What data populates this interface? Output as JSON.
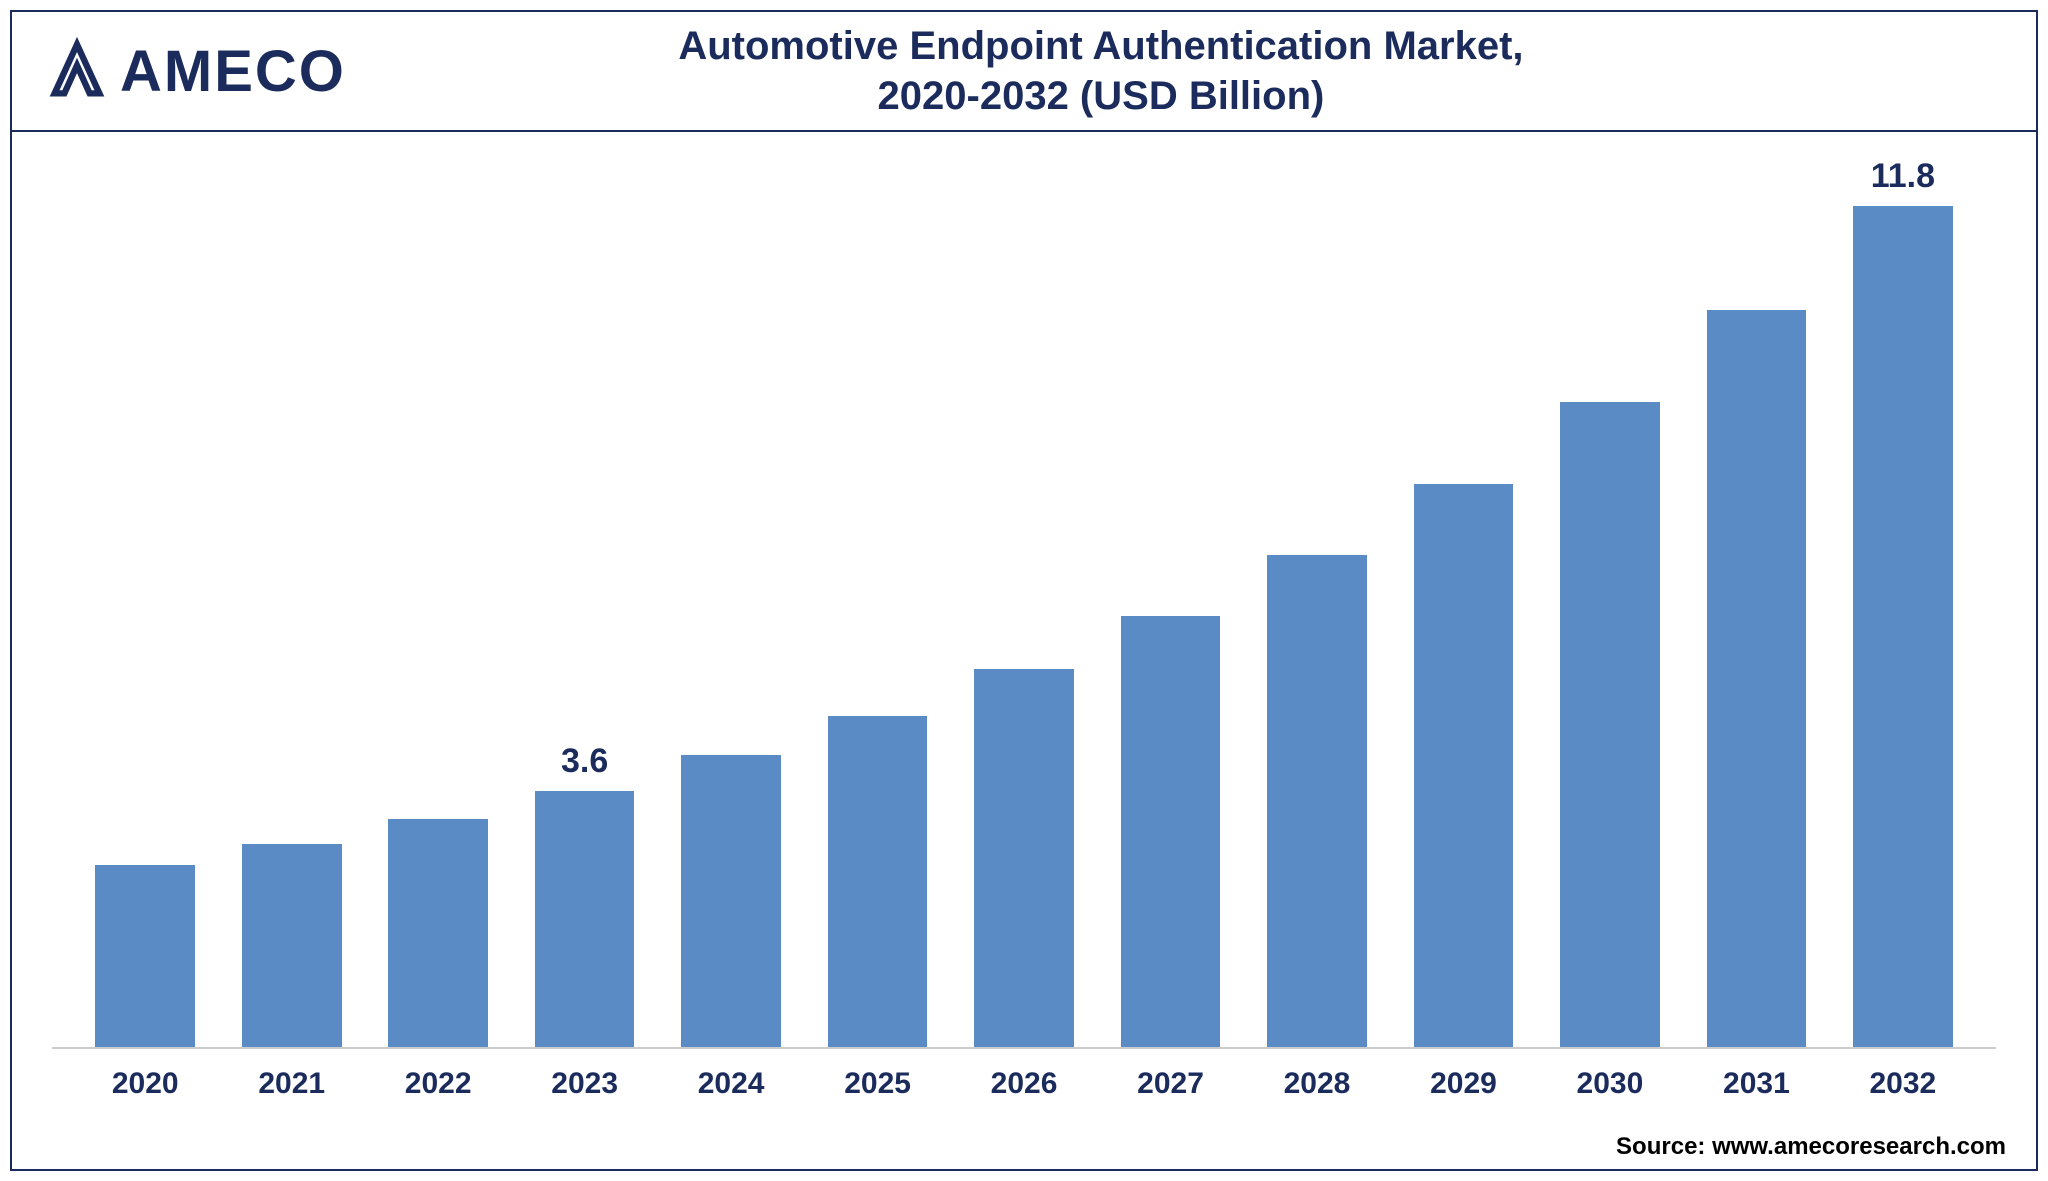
{
  "logo": {
    "text": "AMECO",
    "color": "#1a2b5c"
  },
  "title": {
    "line1": "Automotive Endpoint Authentication Market,",
    "line2": "2020-2032 (USD Billion)",
    "color": "#1a2b5c",
    "fontsize": 40,
    "fontweight": 700
  },
  "chart": {
    "type": "bar",
    "categories": [
      "2020",
      "2021",
      "2022",
      "2023",
      "2024",
      "2025",
      "2026",
      "2027",
      "2028",
      "2029",
      "2030",
      "2031",
      "2032"
    ],
    "values": [
      2.55,
      2.85,
      3.2,
      3.6,
      4.1,
      4.65,
      5.3,
      6.05,
      6.9,
      7.9,
      9.05,
      10.35,
      11.8
    ],
    "value_labels": {
      "3": "3.6",
      "12": "11.8"
    },
    "bar_color": "#5b8bc5",
    "bar_width_ratio": 0.68,
    "ymax": 12.0,
    "ymin": 0,
    "background_color": "#ffffff",
    "axis_line_color": "#cccccc",
    "x_tick_fontsize": 30,
    "x_tick_fontweight": 700,
    "x_tick_color": "#1a2b5c",
    "value_label_fontsize": 34,
    "value_label_fontweight": 700,
    "value_label_color": "#1a2b5c",
    "frame_border_color": "#1a2b5c"
  },
  "source": {
    "text": "Source: www.amecoresearch.com",
    "color": "#000000",
    "fontsize": 24,
    "fontweight": 700
  }
}
